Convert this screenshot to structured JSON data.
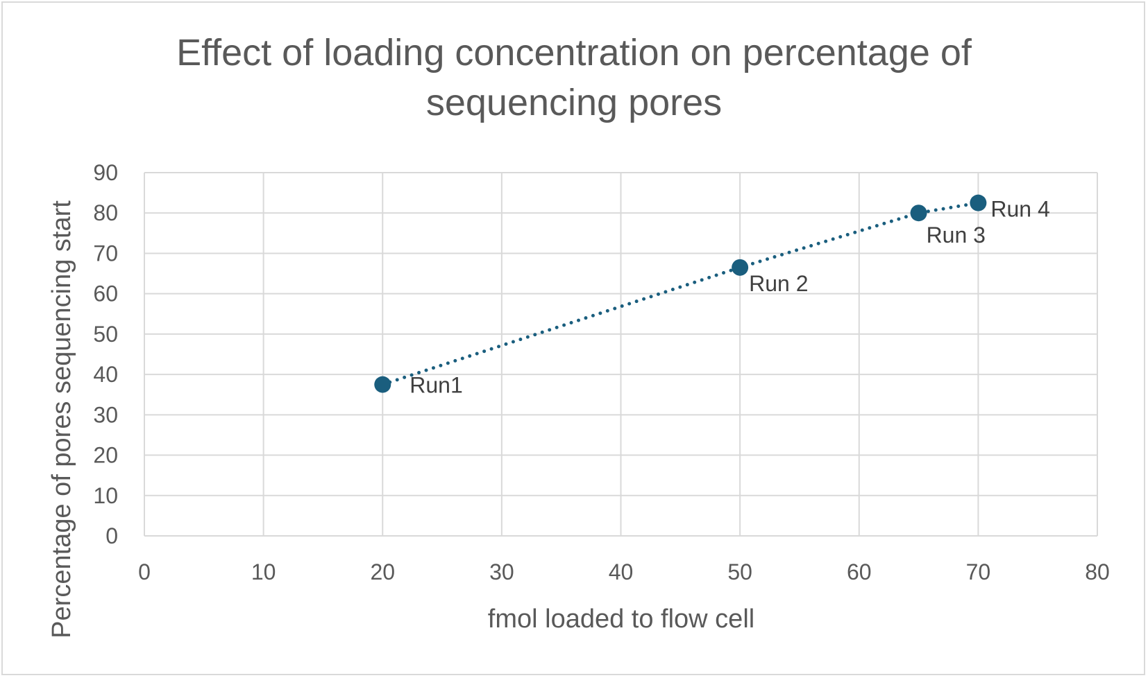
{
  "chart_data": {
    "type": "scatter",
    "title": "Effect of loading concentration on percentage of sequencing pores",
    "title_lines": [
      "Effect of loading concentration on percentage of",
      "sequencing pores"
    ],
    "xlabel": "fmol loaded to flow cell",
    "ylabel": "Percentage of pores sequencing start",
    "xlim": [
      0,
      80
    ],
    "ylim": [
      0,
      90
    ],
    "x_ticks": [
      0,
      10,
      20,
      30,
      40,
      50,
      60,
      70,
      80
    ],
    "y_ticks": [
      0,
      10,
      20,
      30,
      40,
      50,
      60,
      70,
      80,
      90
    ],
    "grid": true,
    "connector": "dotted",
    "series": [
      {
        "color": "#1a5e7e",
        "points": [
          {
            "x": 20,
            "y": 37.5,
            "label": "Run1"
          },
          {
            "x": 50,
            "y": 66.5,
            "label": "Run 2"
          },
          {
            "x": 65,
            "y": 80,
            "label": "Run 3"
          },
          {
            "x": 70,
            "y": 82.5,
            "label": "Run 4"
          }
        ]
      }
    ]
  },
  "colors": {
    "marker": "#1a5e7e",
    "grid": "#d9d9d9",
    "text": "#595959"
  }
}
